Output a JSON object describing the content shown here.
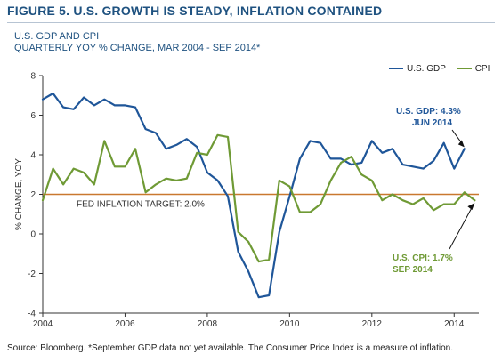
{
  "figure_title": "FIGURE 5. U.S. GROWTH IS STEADY, INFLATION CONTAINED",
  "source_note": "Source: Bloomberg. *September GDP data not yet available. The Consumer Price Index is a measure of inflation.",
  "colors": {
    "gdp": "#1f5699",
    "cpi": "#6f9a35",
    "target": "#c9782f",
    "title": "#1f5280",
    "axis": "#333333"
  },
  "chart_data": {
    "type": "line",
    "title": "U.S. GDP AND CPI",
    "subtitle": "QUARTERLY YOY % CHANGE, MAR 2004 - SEP 2014*",
    "xlabel": "",
    "ylabel": "% CHANGE, YOY",
    "xlim": [
      2004,
      2014.6
    ],
    "ylim": [
      -4,
      8
    ],
    "x_ticks": [
      2004,
      2006,
      2008,
      2010,
      2012,
      2014
    ],
    "y_ticks": [
      -4,
      -2,
      0,
      2,
      4,
      6,
      8
    ],
    "grid": false,
    "legend_position": "top-right",
    "series": [
      {
        "name": "U.S. GDP",
        "key": "gdp",
        "x": [
          2004.0,
          2004.25,
          2004.5,
          2004.75,
          2005.0,
          2005.25,
          2005.5,
          2005.75,
          2006.0,
          2006.25,
          2006.5,
          2006.75,
          2007.0,
          2007.25,
          2007.5,
          2007.75,
          2008.0,
          2008.25,
          2008.5,
          2008.75,
          2009.0,
          2009.25,
          2009.5,
          2009.75,
          2010.0,
          2010.25,
          2010.5,
          2010.75,
          2011.0,
          2011.25,
          2011.5,
          2011.75,
          2012.0,
          2012.25,
          2012.5,
          2012.75,
          2013.0,
          2013.25,
          2013.5,
          2013.75,
          2014.0,
          2014.25
        ],
        "values": [
          6.8,
          7.1,
          6.4,
          6.3,
          6.9,
          6.5,
          6.8,
          6.5,
          6.5,
          6.4,
          5.3,
          5.1,
          4.3,
          4.5,
          4.8,
          4.4,
          3.1,
          2.7,
          1.9,
          -0.9,
          -1.9,
          -3.2,
          -3.1,
          0.1,
          1.9,
          3.8,
          4.7,
          4.6,
          3.8,
          3.8,
          3.5,
          3.6,
          4.7,
          4.1,
          4.3,
          3.5,
          3.4,
          3.3,
          3.7,
          4.6,
          3.3,
          4.3
        ]
      },
      {
        "name": "CPI",
        "key": "cpi",
        "x": [
          2004.0,
          2004.25,
          2004.5,
          2004.75,
          2005.0,
          2005.25,
          2005.5,
          2005.75,
          2006.0,
          2006.25,
          2006.5,
          2006.75,
          2007.0,
          2007.25,
          2007.5,
          2007.75,
          2008.0,
          2008.25,
          2008.5,
          2008.75,
          2009.0,
          2009.25,
          2009.5,
          2009.75,
          2010.0,
          2010.25,
          2010.5,
          2010.75,
          2011.0,
          2011.25,
          2011.5,
          2011.75,
          2012.0,
          2012.25,
          2012.5,
          2012.75,
          2013.0,
          2013.25,
          2013.5,
          2013.75,
          2014.0,
          2014.25,
          2014.5
        ],
        "values": [
          1.7,
          3.3,
          2.5,
          3.3,
          3.1,
          2.5,
          4.7,
          3.4,
          3.4,
          4.3,
          2.1,
          2.5,
          2.8,
          2.7,
          2.8,
          4.1,
          4.0,
          5.0,
          4.9,
          0.1,
          -0.4,
          -1.4,
          -1.3,
          2.7,
          2.4,
          1.1,
          1.1,
          1.5,
          2.7,
          3.6,
          3.9,
          3.0,
          2.7,
          1.7,
          2.0,
          1.7,
          1.5,
          1.8,
          1.2,
          1.5,
          1.5,
          2.1,
          1.7
        ]
      }
    ],
    "reference_line": {
      "value": 2.0,
      "label": "FED INFLATION TARGET: 2.0%"
    },
    "annotations": [
      {
        "key": "gdp_note",
        "line1": "U.S. GDP: 4.3%",
        "line2": "JUN 2014",
        "x": 2014.25,
        "y": 4.3
      },
      {
        "key": "cpi_note",
        "line1": "U.S. CPI: 1.7%",
        "line2": "SEP 2014",
        "x": 2014.5,
        "y": 1.7
      }
    ]
  }
}
